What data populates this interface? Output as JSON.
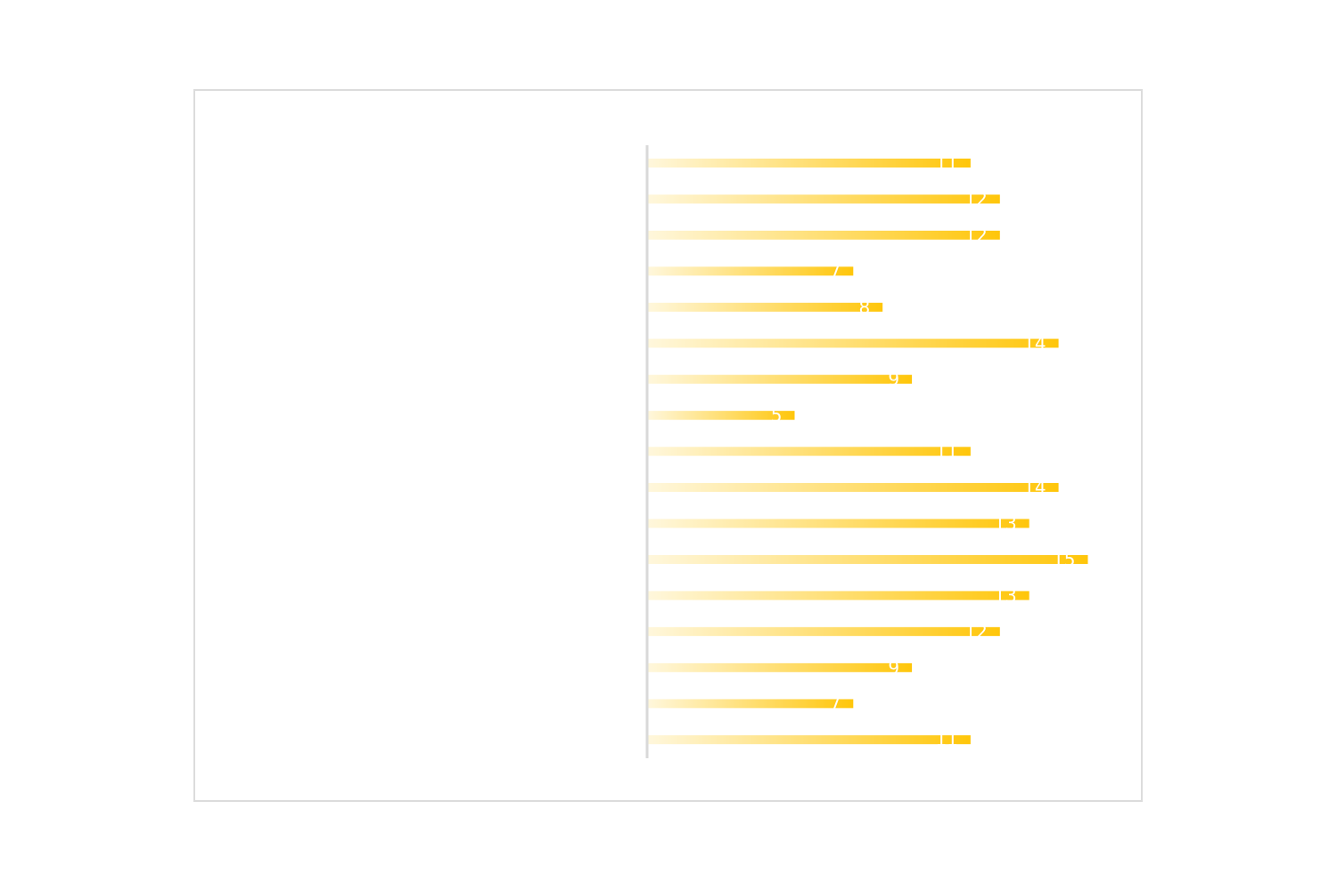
{
  "chart_data": {
    "type": "bar",
    "orientation": "horizontal",
    "categories": [
      "",
      "",
      "",
      "",
      "",
      "",
      "",
      "",
      "",
      "",
      "",
      "",
      "",
      "",
      "",
      "",
      ""
    ],
    "values": [
      11,
      12,
      12,
      7,
      8,
      14,
      9,
      5,
      11,
      14,
      13,
      15,
      13,
      12,
      9,
      7,
      11
    ],
    "title": "",
    "xlabel": "",
    "ylabel": "",
    "xlim": [
      0,
      15
    ],
    "grid": false,
    "legend": "none",
    "data_labels": true
  },
  "colors": {
    "bar_start": "#fff7dc",
    "bar_end": "#ffc60a",
    "axis": "#d9d9d9",
    "frame_border": "#dcdcdc",
    "label_text": "#ffffff"
  }
}
